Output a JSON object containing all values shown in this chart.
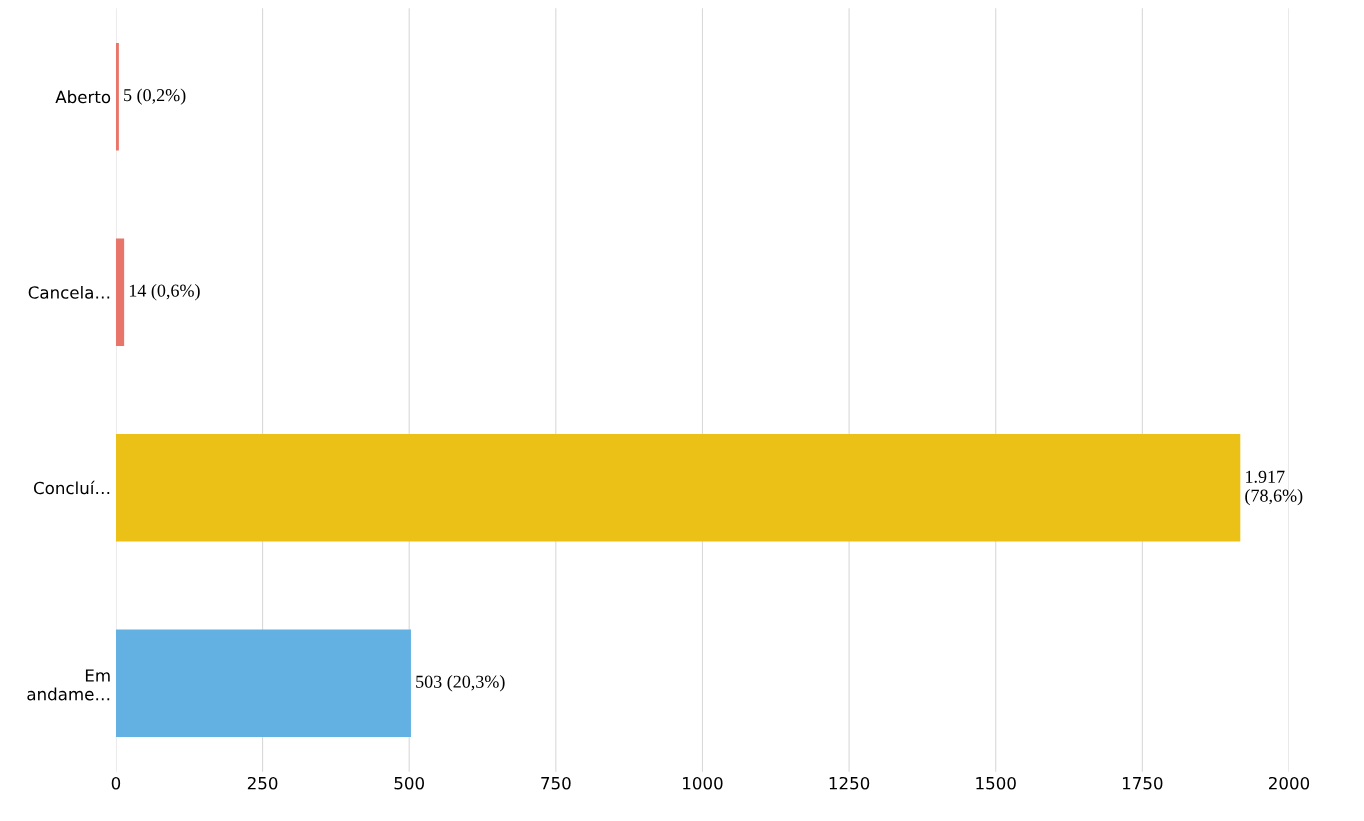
{
  "chart_data": {
    "type": "bar",
    "orientation": "horizontal",
    "categories": [
      "Aberto",
      "Cancela…",
      "Concluí…",
      "Em\nandame…"
    ],
    "values": [
      5,
      14,
      1917,
      503
    ],
    "colors": [
      "#e8756a",
      "#e8756a",
      "#ebc017",
      "#63b1e2"
    ],
    "value_labels": [
      "5 (0,2%)",
      "14 (0,6%)",
      "1.917\n(78,6%)",
      "503 (20,3%)"
    ],
    "xlim": [
      0,
      2000
    ],
    "xticks": [
      0,
      250,
      500,
      750,
      1000,
      1250,
      1500,
      1750,
      2000
    ],
    "grid": "x"
  }
}
